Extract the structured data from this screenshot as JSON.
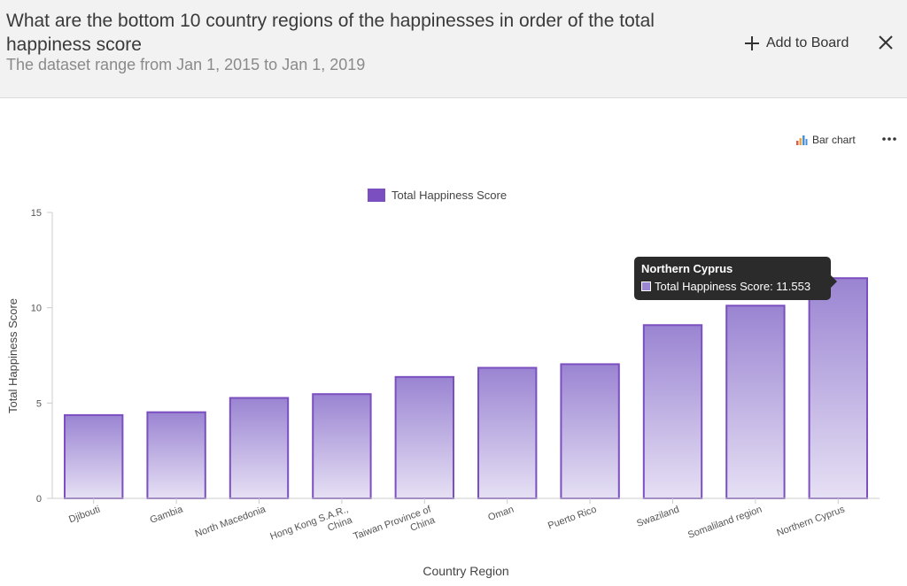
{
  "header": {
    "title": "What are the bottom 10 country regions of the happinesses in order of the total happiness score",
    "subtitle": "The dataset range from Jan 1, 2015 to Jan 1, 2019",
    "add_label": "Add to Board",
    "add_icon": "plus-icon",
    "close_icon": "close-icon"
  },
  "toolbar": {
    "chart_type_label": "Bar chart",
    "chart_type_icon": "bar-chart-icon",
    "more_icon": "more-icon"
  },
  "tooltip": {
    "title": "Northern Cyprus",
    "text": "Total Happiness Score: 11.553"
  },
  "colors": {
    "bar_top": "#9a84d2",
    "bar_bottom": "#e6e0f4",
    "bar_border": "#7b4fc0",
    "legend_swatch": "#7b4fc0"
  },
  "chart_data": {
    "type": "bar",
    "title": "",
    "categories": [
      "Djibouti",
      "Gambia",
      "North Macedonia",
      "Hong Kong S.A.R., China",
      "Taiwan Province of China",
      "Oman",
      "Puerto Rico",
      "Swaziland",
      "Somaliland region",
      "Northern Cyprus"
    ],
    "category_lines": [
      [
        "Djibouti"
      ],
      [
        "Gambia"
      ],
      [
        "North Macedonia"
      ],
      [
        "Hong Kong S.A.R.,",
        "China"
      ],
      [
        "Taiwan Province of",
        "China"
      ],
      [
        "Oman"
      ],
      [
        "Puerto Rico"
      ],
      [
        "Swaziland"
      ],
      [
        "Somaliland region"
      ],
      [
        "Northern Cyprus"
      ]
    ],
    "series": [
      {
        "name": "Total Happiness Score",
        "values": [
          4.37,
          4.52,
          5.27,
          5.47,
          6.37,
          6.85,
          7.04,
          9.09,
          10.11,
          11.553
        ]
      }
    ],
    "xlabel": "Country Region",
    "ylabel": "Total Happiness Score",
    "ylim": [
      0,
      15
    ],
    "yticks": [
      0,
      5,
      10,
      15
    ],
    "legend_position": "top",
    "grid": false
  }
}
